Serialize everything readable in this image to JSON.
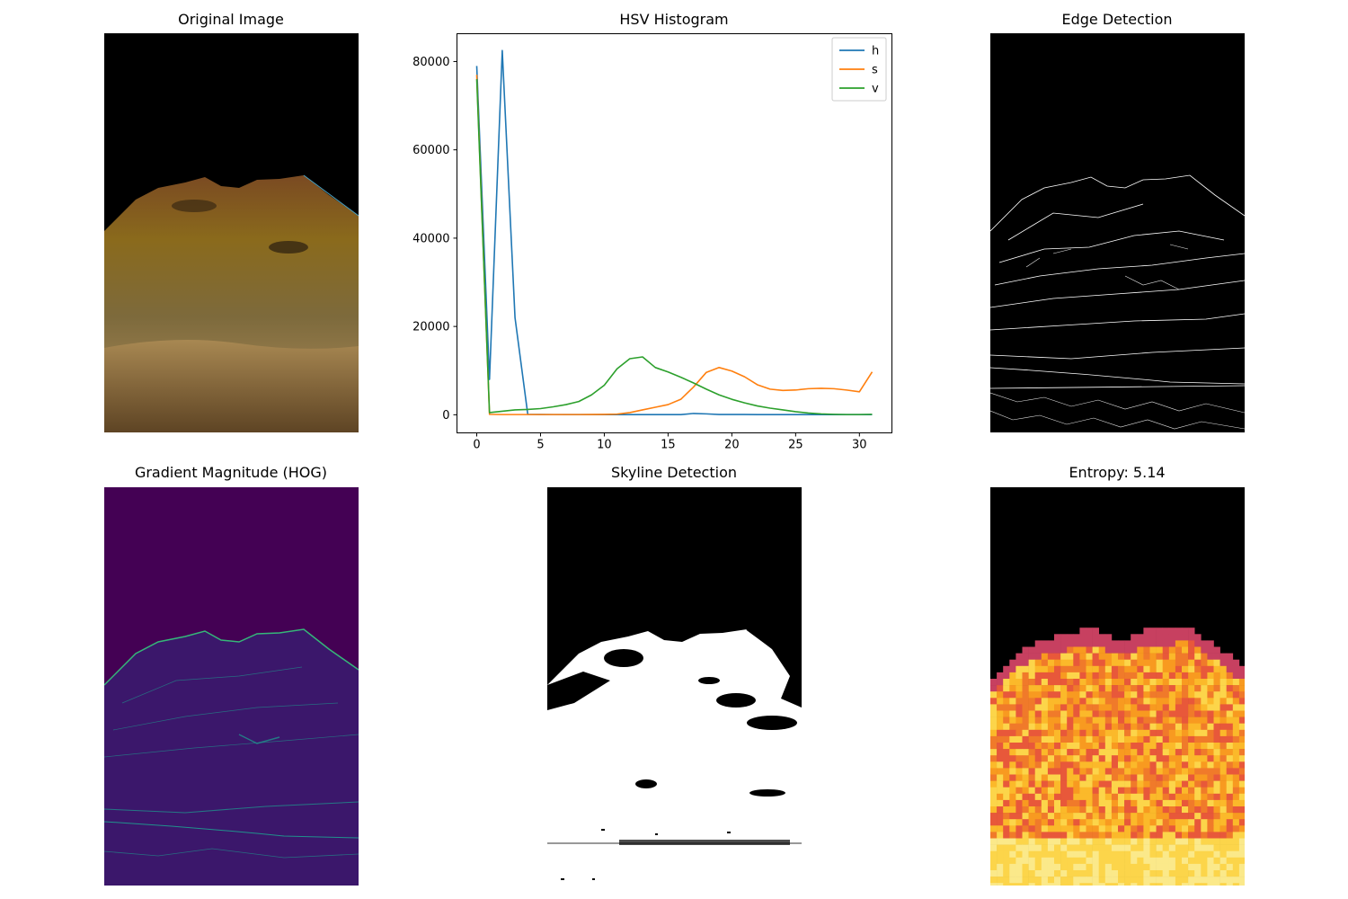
{
  "titles": {
    "original": "Original Image",
    "hsv": "HSV Histogram",
    "edge": "Edge Detection",
    "gradient": "Gradient Magnitude (HOG)",
    "skyline": "Skyline Detection",
    "entropy": "Entropy: 5.14"
  },
  "chart_data": {
    "type": "line",
    "title": "HSV Histogram",
    "xlabel": "",
    "ylabel": "",
    "xlim": [
      -1.55,
      32.55
    ],
    "ylim": [
      -4100,
      86300
    ],
    "xticks": [
      0,
      5,
      10,
      15,
      20,
      25,
      30
    ],
    "yticks": [
      0,
      20000,
      40000,
      60000,
      80000
    ],
    "legend_position": "top-right",
    "grid": false,
    "series": [
      {
        "name": "h",
        "color": "#1f77b4",
        "values": [
          79000,
          8000,
          82500,
          22000,
          100,
          60,
          50,
          40,
          30,
          30,
          30,
          30,
          30,
          30,
          30,
          40,
          40,
          300,
          200,
          60,
          60,
          60,
          40,
          40,
          40,
          40,
          40,
          40,
          30,
          30,
          30,
          30
        ]
      },
      {
        "name": "s",
        "color": "#ff7f0e",
        "values": [
          77000,
          100,
          50,
          50,
          50,
          50,
          50,
          50,
          50,
          60,
          80,
          150,
          500,
          1100,
          1700,
          2300,
          3500,
          6300,
          9600,
          10700,
          9900,
          8600,
          6800,
          5800,
          5500,
          5600,
          5900,
          6000,
          5900,
          5600,
          5200,
          9700
        ]
      },
      {
        "name": "v",
        "color": "#2ca02c",
        "values": [
          76000,
          500,
          800,
          1100,
          1200,
          1400,
          1800,
          2300,
          3000,
          4500,
          6700,
          10400,
          12700,
          13100,
          10700,
          9700,
          8500,
          7200,
          5800,
          4500,
          3500,
          2700,
          2000,
          1500,
          1100,
          700,
          400,
          200,
          100,
          50,
          50,
          100
        ]
      }
    ]
  },
  "entropy_value": 5.14
}
